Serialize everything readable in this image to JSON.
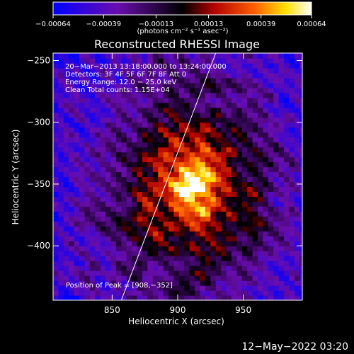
{
  "chart_data": {
    "type": "heatmap",
    "title": "Reconstructed RHESSI Image",
    "xlabel": "Heliocentric X (arcsec)",
    "ylabel": "Heliocentric Y (arcsec)",
    "xlim": [
      805,
      995
    ],
    "ylim": [
      -444,
      -244
    ],
    "x_ticks": [
      850,
      900,
      950
    ],
    "y_ticks": [
      -250,
      -300,
      -350,
      -400
    ],
    "x_tick_labels": [
      "850",
      "900",
      "950"
    ],
    "y_tick_labels": [
      "−250",
      "−300",
      "−350",
      "−400"
    ],
    "colorbar": {
      "min": -0.00064,
      "max": 0.00064,
      "tick_values": [
        -0.00064,
        -0.00039,
        -0.00013,
        0.00013,
        0.00039,
        0.00064
      ],
      "tick_labels": [
        "−0.00064",
        "−0.00039",
        "−0.00013",
        "0.00013",
        "0.00039",
        "0.00064"
      ],
      "unit_label": "(photons cm⁻² s⁻¹ asec⁻²)",
      "colors": [
        "#0000ff",
        "#6a0dad",
        "#000000",
        "#b00000",
        "#ff6000",
        "#ffe000",
        "#ffffff"
      ]
    },
    "annotations": [
      "20−Mar−2013 13:18:00.000 to 13:24:00.000",
      "Detectors: 3F 4F 5F 6F 7F 8F  Att 0",
      "Energy Range: 12.0 − 25.0 keV",
      "Clean     Total counts: 1.15E+04"
    ],
    "peak_label": "Position of Peak = [908,−352]",
    "peak": {
      "x": 908,
      "y": -352
    },
    "limb_line": [
      {
        "x": 857,
        "y": -444
      },
      {
        "x": 929,
        "y": -244
      }
    ]
  },
  "footer": {
    "date": "12−May−2022 03:20"
  }
}
